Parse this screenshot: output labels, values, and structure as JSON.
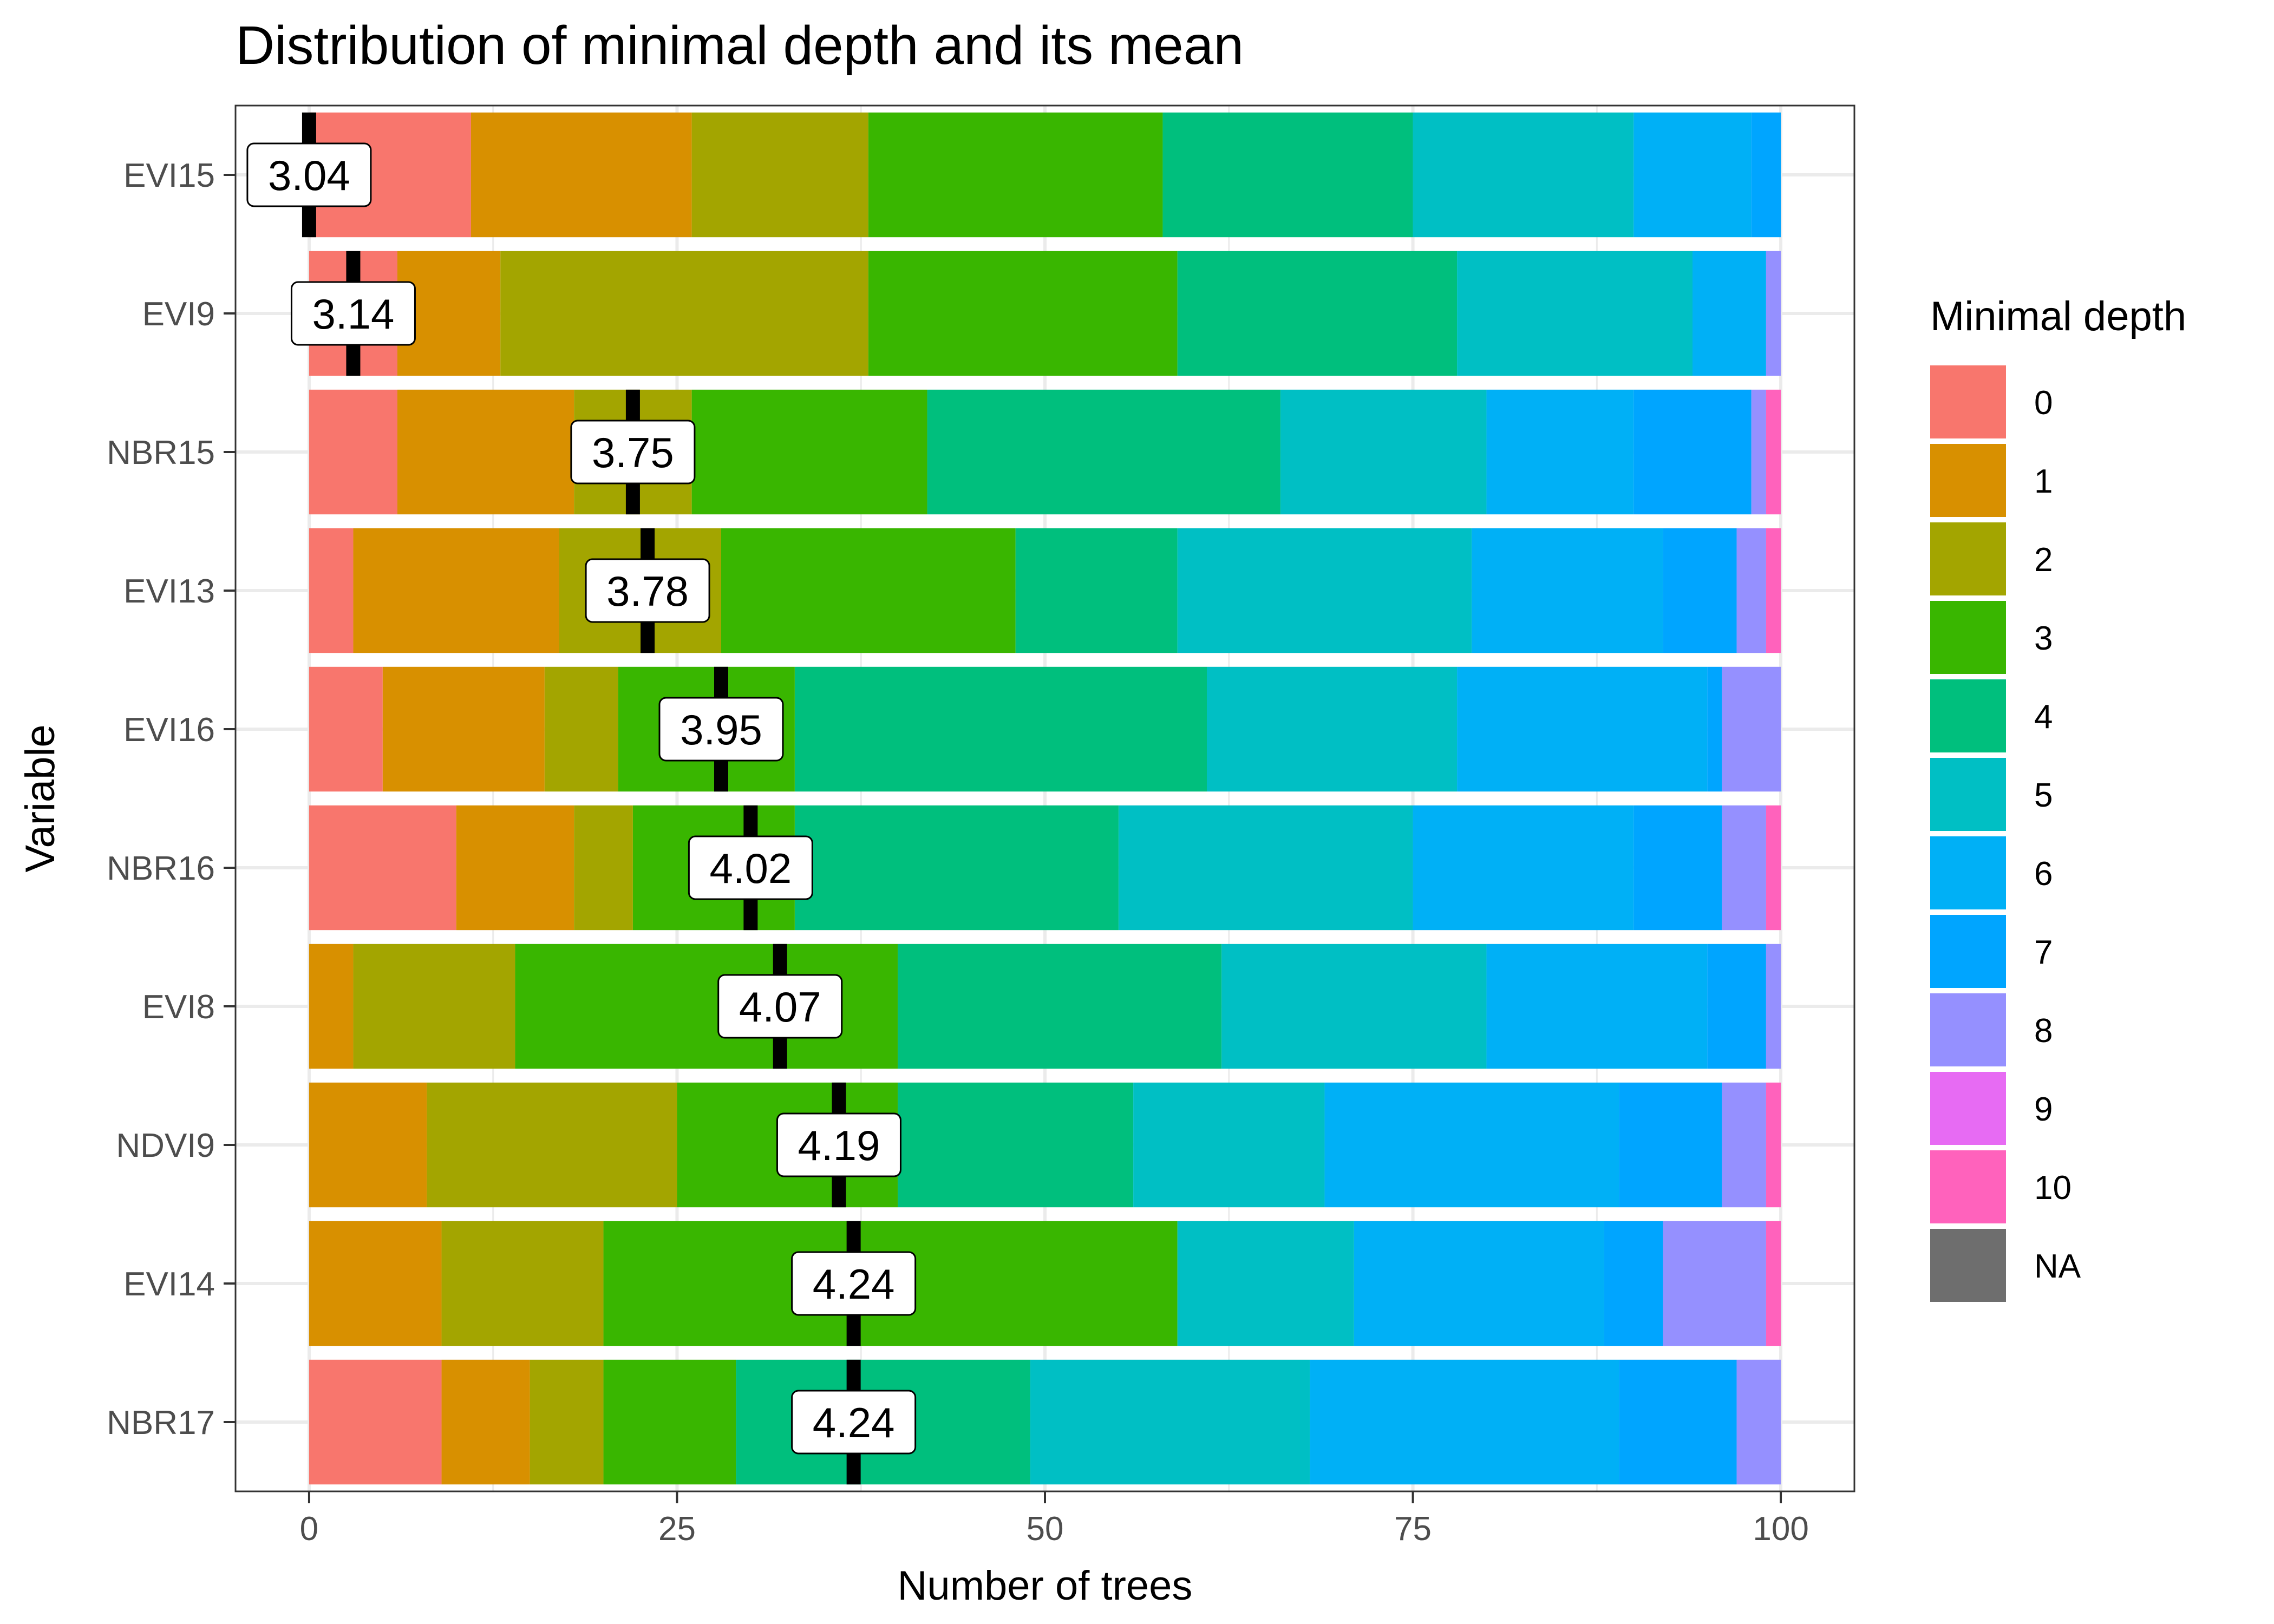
{
  "chart_data": {
    "type": "bar",
    "orientation": "horizontal",
    "stacked": true,
    "title": "Distribution of minimal depth and its mean",
    "xlabel": "Number of trees",
    "ylabel": "Variable",
    "xlim": [
      -5,
      105
    ],
    "xticks": [
      0,
      25,
      50,
      75,
      100
    ],
    "xtick_labels": [
      "0",
      "25",
      "50",
      "75",
      "100"
    ],
    "grid": true,
    "legend": {
      "title": "Minimal depth",
      "placement": "right",
      "entries": [
        {
          "label": "0",
          "color": "#F8766D"
        },
        {
          "label": "1",
          "color": "#D89000"
        },
        {
          "label": "2",
          "color": "#A3A500"
        },
        {
          "label": "3",
          "color": "#39B600"
        },
        {
          "label": "4",
          "color": "#00BF7D"
        },
        {
          "label": "5",
          "color": "#00BFC4"
        },
        {
          "label": "6",
          "color": "#00B0F6"
        },
        {
          "label": "7",
          "color": "#00A5FF"
        },
        {
          "label": "8",
          "color": "#9590FF"
        },
        {
          "label": "9",
          "color": "#E76BF3"
        },
        {
          "label": "10",
          "color": "#FF62BC"
        },
        {
          "label": "NA",
          "color": "#6E6E6E"
        }
      ]
    },
    "categories": [
      "EVI15",
      "EVI9",
      "NBR15",
      "EVI13",
      "EVI16",
      "NBR16",
      "EVI8",
      "NDVI9",
      "EVI14",
      "NBR17"
    ],
    "series": [
      {
        "name": "0",
        "values": [
          11,
          6,
          6,
          3,
          5,
          10,
          0,
          0,
          0,
          9
        ]
      },
      {
        "name": "1",
        "values": [
          15,
          7,
          12,
          14,
          11,
          8,
          3,
          8,
          9,
          6
        ]
      },
      {
        "name": "2",
        "values": [
          12,
          25,
          8,
          11,
          5,
          4,
          11,
          17,
          11,
          5
        ]
      },
      {
        "name": "3",
        "values": [
          20,
          21,
          16,
          20,
          12,
          11,
          26,
          15,
          39,
          9
        ]
      },
      {
        "name": "4",
        "values": [
          17,
          19,
          24,
          11,
          28,
          22,
          22,
          16,
          0,
          20
        ]
      },
      {
        "name": "5",
        "values": [
          15,
          16,
          14,
          20,
          17,
          20,
          18,
          13,
          12,
          19
        ]
      },
      {
        "name": "6",
        "values": [
          8,
          5,
          10,
          13,
          17,
          15,
          15,
          20,
          17,
          21
        ]
      },
      {
        "name": "7",
        "values": [
          2,
          0,
          8,
          5,
          1,
          6,
          4,
          7,
          4,
          8
        ]
      },
      {
        "name": "8",
        "values": [
          0,
          1,
          1,
          2,
          4,
          3,
          1,
          3,
          7,
          3
        ]
      },
      {
        "name": "9",
        "values": [
          0,
          0,
          0,
          0,
          0,
          0,
          0,
          0,
          0,
          0
        ]
      },
      {
        "name": "10",
        "values": [
          0,
          0,
          1,
          1,
          0,
          1,
          0,
          1,
          1,
          0
        ]
      }
    ],
    "mean_minimal_depth": {
      "values": [
        3.04,
        3.14,
        3.75,
        3.78,
        3.95,
        4.02,
        4.07,
        4.19,
        4.24,
        4.24
      ],
      "labels": [
        "3.04",
        "3.14",
        "3.75",
        "3.78",
        "3.95",
        "4.02",
        "4.07",
        "4.19",
        "4.24",
        "4.24"
      ],
      "marker_x": [
        0,
        3,
        22,
        23,
        28,
        30,
        32,
        36,
        37,
        37
      ]
    }
  }
}
